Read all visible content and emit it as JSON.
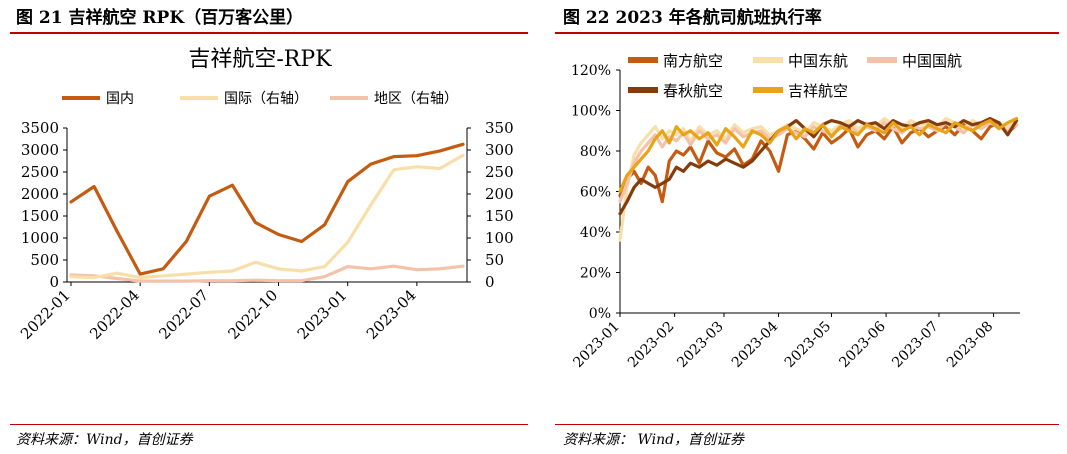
{
  "figures": [
    {
      "title": "图 21 吉祥航空 RPK（百万客公里）",
      "source": "资料来源：Wind，首创证券"
    },
    {
      "title": "图 22 2023 年各航司航班执行率",
      "source": "资料来源： Wind，首创证券"
    }
  ],
  "chart_data": [
    {
      "type": "line",
      "title": "吉祥航空-RPK",
      "x": [
        "2022-01",
        "2022-02",
        "2022-03",
        "2022-04",
        "2022-05",
        "2022-06",
        "2022-07",
        "2022-08",
        "2022-09",
        "2022-10",
        "2022-11",
        "2022-12",
        "2023-01",
        "2023-02",
        "2023-03",
        "2023-04",
        "2023-05",
        "2023-06"
      ],
      "x_tick_labels": [
        "2022-01",
        "2022-04",
        "2022-07",
        "2022-10",
        "2023-01",
        "2023-04"
      ],
      "x_tick_indices": [
        0,
        3,
        6,
        9,
        12,
        15
      ],
      "yleft_ticks": [
        "0",
        "500",
        "1000",
        "1500",
        "2000",
        "2500",
        "3000",
        "3500"
      ],
      "yright_ticks": [
        "0",
        "50",
        "100",
        "150",
        "200",
        "250",
        "300",
        "350"
      ],
      "ylim_left": [
        0,
        3500
      ],
      "ylim_right": [
        0,
        350
      ],
      "legend_position": "top",
      "series": [
        {
          "name": "国内",
          "axis": "left",
          "color": "#c55a11",
          "values": [
            1820,
            2170,
            1150,
            180,
            300,
            920,
            1950,
            2200,
            1350,
            1080,
            920,
            1300,
            2280,
            2680,
            2850,
            2870,
            2980,
            3130
          ]
        },
        {
          "name": "国际（右轴）",
          "axis": "right",
          "color": "#f8dfa9",
          "values": [
            12,
            10,
            20,
            10,
            14,
            18,
            22,
            25,
            45,
            30,
            25,
            35,
            90,
            175,
            255,
            262,
            258,
            288
          ]
        },
        {
          "name": "地区（右轴）",
          "axis": "right",
          "color": "#f4c2aa",
          "values": [
            16,
            14,
            8,
            2,
            2,
            2,
            3,
            3,
            4,
            3,
            3,
            12,
            35,
            30,
            36,
            28,
            30,
            36
          ]
        }
      ]
    },
    {
      "type": "line",
      "x_tick_labels": [
        "2023-01",
        "2023-02",
        "2023-03",
        "2023-04",
        "2023-05",
        "2023-06",
        "2023-07",
        "2023-08"
      ],
      "x_range_days": [
        0,
        227
      ],
      "y_ticks": [
        "0%",
        "20%",
        "40%",
        "60%",
        "80%",
        "100%",
        "120%"
      ],
      "ylim": [
        0,
        120
      ],
      "legend_position": "top",
      "series": [
        {
          "name": "南方航空",
          "color": "#c55a11",
          "x_days": [
            0,
            4,
            8,
            12,
            16,
            20,
            24,
            28,
            32,
            36,
            40,
            45,
            50,
            55,
            60,
            65,
            70,
            75,
            80,
            85,
            90,
            95,
            100,
            105,
            110,
            115,
            120,
            125,
            130,
            135,
            140,
            145,
            150,
            155,
            160,
            165,
            170,
            175,
            180,
            185,
            190,
            195,
            200,
            205,
            210,
            215,
            220,
            225
          ],
          "values": [
            58,
            66,
            70,
            64,
            72,
            68,
            55,
            75,
            80,
            78,
            82,
            74,
            85,
            79,
            77,
            81,
            73,
            76,
            85,
            80,
            70,
            88,
            90,
            86,
            81,
            89,
            84,
            87,
            91,
            82,
            88,
            90,
            86,
            92,
            84,
            89,
            91,
            87,
            90,
            92,
            88,
            93,
            90,
            86,
            92,
            94,
            89,
            93
          ]
        },
        {
          "name": "中国东航",
          "color": "#f8dfa9",
          "x_days": [
            0,
            4,
            8,
            12,
            16,
            20,
            24,
            28,
            32,
            36,
            40,
            45,
            50,
            55,
            60,
            65,
            70,
            75,
            80,
            85,
            90,
            95,
            100,
            105,
            110,
            115,
            120,
            125,
            130,
            135,
            140,
            145,
            150,
            155,
            160,
            165,
            170,
            175,
            180,
            185,
            190,
            195,
            200,
            205,
            210,
            215,
            220,
            225
          ],
          "values": [
            36,
            62,
            78,
            84,
            88,
            92,
            86,
            90,
            88,
            91,
            85,
            92,
            88,
            90,
            86,
            93,
            89,
            91,
            92,
            88,
            90,
            93,
            91,
            89,
            94,
            92,
            90,
            93,
            95,
            91,
            94,
            92,
            96,
            93,
            91,
            95,
            93,
            94,
            92,
            96,
            94,
            91,
            95,
            93,
            96,
            94,
            92,
            95
          ]
        },
        {
          "name": "中国国航",
          "color": "#f4c2aa",
          "x_days": [
            0,
            4,
            8,
            12,
            16,
            20,
            24,
            28,
            32,
            36,
            40,
            45,
            50,
            55,
            60,
            65,
            70,
            75,
            80,
            85,
            90,
            95,
            100,
            105,
            110,
            115,
            120,
            125,
            130,
            135,
            140,
            145,
            150,
            155,
            160,
            165,
            170,
            175,
            180,
            185,
            190,
            195,
            200,
            205,
            210,
            215,
            220,
            225
          ],
          "values": [
            55,
            64,
            74,
            80,
            84,
            88,
            82,
            87,
            85,
            89,
            83,
            90,
            86,
            88,
            84,
            91,
            87,
            89,
            90,
            86,
            88,
            91,
            89,
            87,
            92,
            90,
            88,
            91,
            93,
            89,
            92,
            90,
            94,
            91,
            89,
            93,
            91,
            92,
            90,
            94,
            92,
            89,
            93,
            91,
            94,
            92,
            90,
            93
          ]
        },
        {
          "name": "春秋航空",
          "color": "#843c0c",
          "x_days": [
            0,
            4,
            8,
            12,
            16,
            20,
            24,
            28,
            32,
            36,
            40,
            45,
            50,
            55,
            60,
            65,
            70,
            75,
            80,
            85,
            90,
            95,
            100,
            105,
            110,
            115,
            120,
            125,
            130,
            135,
            140,
            145,
            150,
            155,
            160,
            165,
            170,
            175,
            180,
            185,
            190,
            195,
            200,
            205,
            210,
            215,
            220,
            225
          ],
          "values": [
            49,
            55,
            62,
            66,
            64,
            62,
            64,
            66,
            72,
            70,
            74,
            72,
            75,
            73,
            76,
            74,
            72,
            75,
            80,
            85,
            90,
            92,
            95,
            91,
            87,
            93,
            95,
            94,
            92,
            95,
            93,
            94,
            91,
            95,
            93,
            92,
            94,
            95,
            93,
            94,
            92,
            95,
            93,
            94,
            96,
            94,
            88,
            95
          ]
        },
        {
          "name": "吉祥航空",
          "color": "#e8a317",
          "x_days": [
            0,
            4,
            8,
            12,
            16,
            20,
            24,
            28,
            32,
            36,
            40,
            45,
            50,
            55,
            60,
            65,
            70,
            75,
            80,
            85,
            90,
            95,
            100,
            105,
            110,
            115,
            120,
            125,
            130,
            135,
            140,
            145,
            150,
            155,
            160,
            165,
            170,
            175,
            180,
            185,
            190,
            195,
            200,
            205,
            210,
            215,
            220,
            225
          ],
          "values": [
            60,
            68,
            72,
            76,
            80,
            86,
            90,
            84,
            92,
            88,
            90,
            86,
            89,
            83,
            91,
            87,
            82,
            90,
            88,
            84,
            90,
            92,
            86,
            91,
            89,
            93,
            87,
            92,
            90,
            88,
            93,
            91,
            89,
            94,
            90,
            92,
            88,
            93,
            91,
            89,
            94,
            92,
            90,
            93,
            95,
            91,
            94,
            96
          ]
        }
      ]
    }
  ]
}
